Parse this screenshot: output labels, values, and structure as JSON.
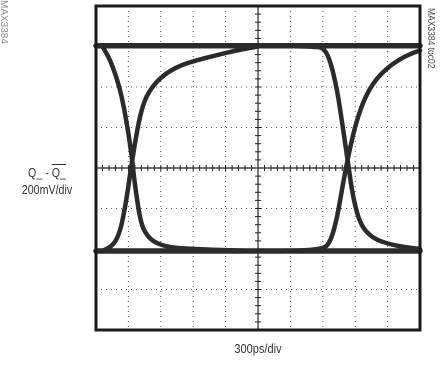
{
  "chart_data": {
    "type": "line",
    "title": "",
    "xlabel": "300ps/div",
    "ylabel": [
      "Q_ - Q_",
      "200mV/div"
    ],
    "ylabel_parts": {
      "signal": "Q_",
      "separator": "-",
      "complement": "Q_"
    },
    "x_unit": "div",
    "y_unit": "div",
    "xlim": [
      0,
      10
    ],
    "ylim": [
      -4,
      4
    ],
    "grid": true,
    "grid_style": "dotted",
    "figure_id": "MAX3384 toc02",
    "cut_off_text": "MAX3384",
    "series": [
      {
        "x": [
          0,
          10
        ],
        "y": [
          3.02,
          3.02
        ]
      },
      {
        "x": [
          0,
          10
        ],
        "y": [
          -2.05,
          -2.05
        ]
      },
      {
        "x": [
          0.2,
          0.42,
          0.63,
          0.8,
          0.93,
          1.04,
          1.13,
          1.2,
          1.28,
          1.36,
          1.48,
          1.7,
          2.0,
          2.4,
          3.0,
          4.0,
          5.0
        ],
        "y": [
          3.0,
          2.7,
          2.25,
          1.75,
          1.2,
          0.65,
          0.1,
          -0.4,
          -0.85,
          -1.25,
          -1.55,
          -1.78,
          -1.9,
          -1.97,
          -2.0,
          -2.03,
          -2.05
        ]
      },
      {
        "x": [
          0.2,
          0.55,
          0.75,
          0.88,
          1.0,
          1.1,
          1.22,
          1.36,
          1.55,
          1.85,
          2.2,
          2.6,
          3.1,
          3.7,
          4.3,
          5.0
        ],
        "y": [
          -2.05,
          -1.9,
          -1.55,
          -1.05,
          -0.45,
          0.1,
          0.7,
          1.3,
          1.78,
          2.12,
          2.36,
          2.53,
          2.66,
          2.78,
          2.9,
          3.0
        ]
      },
      {
        "x": [
          5.0,
          6.8,
          7.05,
          7.25,
          7.45,
          7.62,
          7.78,
          7.93,
          8.1,
          8.3,
          8.6,
          9.0,
          9.5,
          10.0
        ],
        "y": [
          3.02,
          3.0,
          2.95,
          2.6,
          1.9,
          1.0,
          0.1,
          -0.7,
          -1.25,
          -1.55,
          -1.75,
          -1.87,
          -1.95,
          -2.0
        ]
      },
      {
        "x": [
          5.0,
          7.0,
          7.25,
          7.45,
          7.62,
          7.8,
          8.0,
          8.25,
          8.55,
          8.95,
          9.4,
          9.8,
          10.0
        ],
        "y": [
          -2.05,
          -2.03,
          -1.8,
          -1.2,
          -0.4,
          0.35,
          1.05,
          1.65,
          2.1,
          2.45,
          2.7,
          2.85,
          2.9
        ]
      }
    ]
  }
}
